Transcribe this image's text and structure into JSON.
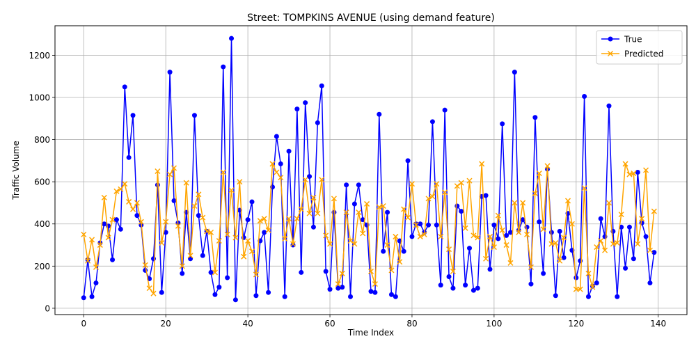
{
  "chart_data": {
    "type": "line",
    "title": "Street: TOMPKINS AVENUE (using demand feature)",
    "xlabel": "Time Index",
    "ylabel": "Traffic Volume",
    "xlim": [
      -7,
      147
    ],
    "ylim": [
      -30,
      1340
    ],
    "xticks": [
      0,
      20,
      40,
      60,
      80,
      100,
      120,
      140
    ],
    "yticks": [
      0,
      200,
      400,
      600,
      800,
      1000,
      1200
    ],
    "grid": true,
    "legend_position": "top-right",
    "series": [
      {
        "name": "True",
        "color": "#0000ff",
        "marker": "o",
        "values": [
          50,
          230,
          55,
          120,
          310,
          400,
          390,
          230,
          420,
          375,
          1050,
          715,
          915,
          440,
          395,
          180,
          140,
          235,
          585,
          75,
          360,
          1120,
          510,
          405,
          165,
          455,
          235,
          915,
          440,
          250,
          365,
          170,
          65,
          100,
          1145,
          145,
          1280,
          40,
          465,
          335,
          420,
          505,
          60,
          320,
          360,
          75,
          575,
          815,
          685,
          55,
          745,
          300,
          945,
          170,
          975,
          625,
          385,
          880,
          1055,
          175,
          90,
          455,
          95,
          100,
          585,
          55,
          495,
          585,
          420,
          395,
          80,
          75,
          920,
          270,
          455,
          65,
          55,
          320,
          270,
          700,
          340,
          400,
          400,
          360,
          395,
          885,
          395,
          110,
          940,
          150,
          95,
          485,
          460,
          110,
          285,
          85,
          95,
          530,
          535,
          185,
          395,
          330,
          875,
          345,
          360,
          1120,
          370,
          420,
          385,
          115,
          905,
          410,
          165,
          660,
          360,
          60,
          365,
          240,
          450,
          275,
          145,
          225,
          1005,
          55,
          105,
          120,
          425,
          340,
          960,
          365,
          55,
          385,
          190,
          385,
          235,
          645,
          405,
          340,
          120,
          265
        ]
      },
      {
        "name": "Predicted",
        "color": "#ffa500",
        "marker": "x",
        "values": [
          350,
          225,
          325,
          195,
          300,
          525,
          335,
          420,
          555,
          565,
          590,
          505,
          470,
          500,
          410,
          205,
          95,
          70,
          650,
          310,
          410,
          635,
          665,
          390,
          200,
          595,
          250,
          485,
          540,
          430,
          365,
          360,
          170,
          320,
          645,
          350,
          560,
          335,
          600,
          245,
          320,
          270,
          160,
          415,
          425,
          370,
          685,
          645,
          620,
          330,
          425,
          305,
          425,
          470,
          610,
          450,
          525,
          450,
          610,
          345,
          305,
          520,
          115,
          165,
          455,
          320,
          305,
          455,
          355,
          495,
          175,
          115,
          480,
          485,
          300,
          180,
          340,
          220,
          470,
          430,
          590,
          395,
          340,
          350,
          520,
          530,
          590,
          340,
          550,
          280,
          175,
          580,
          595,
          380,
          605,
          345,
          335,
          685,
          235,
          340,
          290,
          440,
          370,
          300,
          215,
          500,
          360,
          500,
          350,
          195,
          545,
          640,
          375,
          675,
          305,
          310,
          225,
          335,
          510,
          400,
          90,
          90,
          570,
          165,
          100,
          290,
          320,
          275,
          500,
          305,
          310,
          445,
          685,
          635,
          640,
          305,
          425,
          655,
          275,
          460
        ]
      }
    ]
  }
}
